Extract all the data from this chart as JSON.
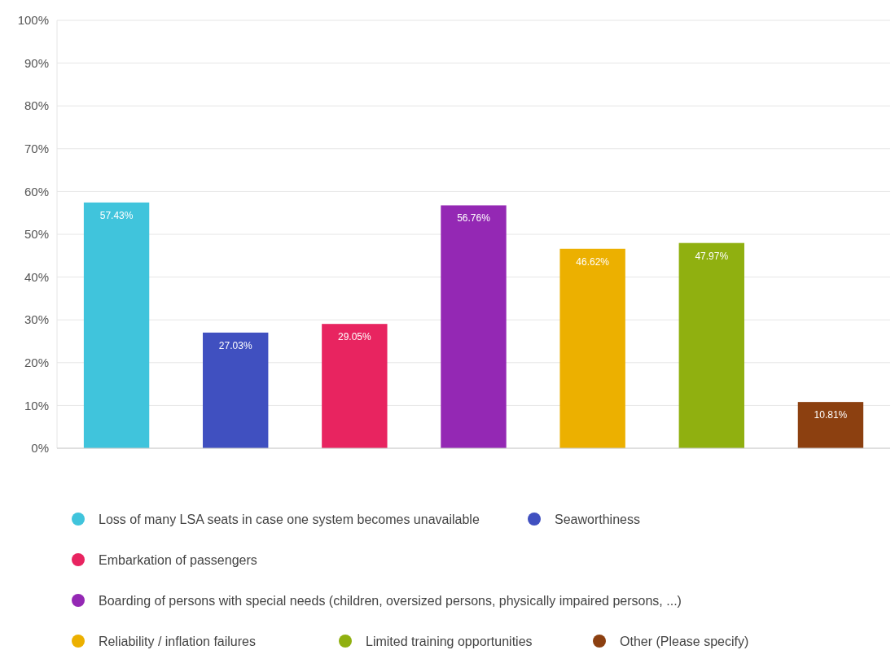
{
  "chart_data": {
    "type": "bar",
    "categories": [
      null
    ],
    "series": [
      {
        "name": "Loss of many LSA seats in case one system becomes unavailable",
        "color": "#40c4dc",
        "values": [
          57.43
        ],
        "value_labels": [
          "57.43%"
        ]
      },
      {
        "name": "Seaworthiness",
        "color": "#4050c0",
        "values": [
          27.03
        ],
        "value_labels": [
          "27.03%"
        ]
      },
      {
        "name": "Embarkation of passengers",
        "color": "#e82460",
        "values": [
          29.05
        ],
        "value_labels": [
          "29.05%"
        ]
      },
      {
        "name": "Boarding of persons with special needs (children, oversized persons, physically impaired persons, ...)",
        "color": "#9428b4",
        "values": [
          56.76
        ],
        "value_labels": [
          "56.76%"
        ]
      },
      {
        "name": "Reliability / inflation failures",
        "color": "#ecb000",
        "values": [
          46.62
        ],
        "value_labels": [
          "46.62%"
        ]
      },
      {
        "name": "Limited training opportunities",
        "color": "#90b010",
        "values": [
          47.97
        ],
        "value_labels": [
          "47.97%"
        ]
      },
      {
        "name": "Other (Please specify)",
        "color": "#8c4010",
        "values": [
          10.81
        ],
        "value_labels": [
          "10.81%"
        ]
      }
    ],
    "ylim": [
      0,
      100
    ],
    "yticks": [
      {
        "value": 0,
        "label": "0%"
      },
      {
        "value": 10,
        "label": "10%"
      },
      {
        "value": 20,
        "label": "20%"
      },
      {
        "value": 30,
        "label": "30%"
      },
      {
        "value": 40,
        "label": "40%"
      },
      {
        "value": 50,
        "label": "50%"
      },
      {
        "value": 60,
        "label": "60%"
      },
      {
        "value": 70,
        "label": "70%"
      },
      {
        "value": 80,
        "label": "80%"
      },
      {
        "value": 90,
        "label": "90%"
      },
      {
        "value": 100,
        "label": "100%"
      }
    ],
    "grid": "y",
    "legend": "bottom",
    "tick_labels": "y"
  }
}
